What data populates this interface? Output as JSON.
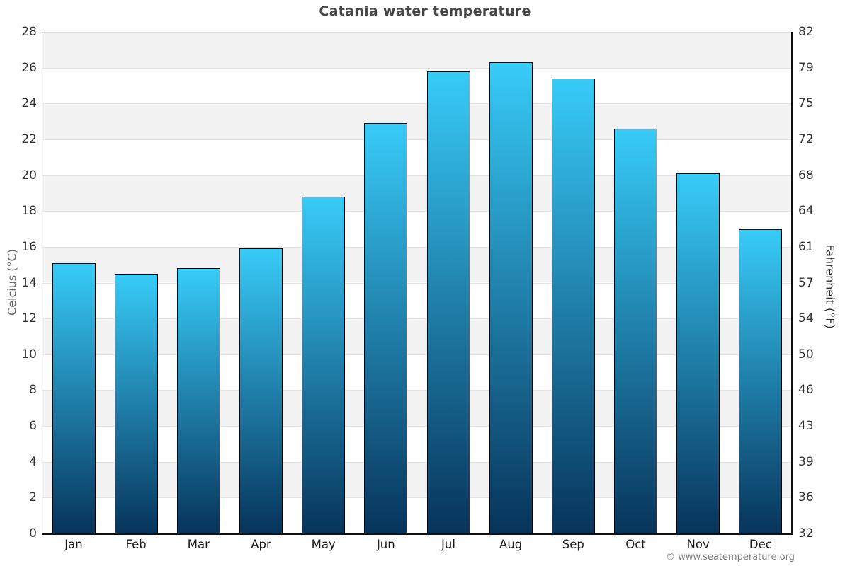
{
  "title": "Catania water temperature",
  "copyright": "© www.seatemperature.org",
  "chart_data": {
    "type": "bar",
    "title": "Catania water temperature",
    "categories": [
      "Jan",
      "Feb",
      "Mar",
      "Apr",
      "May",
      "Jun",
      "Jul",
      "Aug",
      "Sep",
      "Oct",
      "Nov",
      "Dec"
    ],
    "values": [
      15.1,
      14.5,
      14.8,
      15.9,
      18.8,
      22.9,
      25.8,
      26.3,
      25.4,
      22.6,
      20.1,
      17.0
    ],
    "ylabel_left": "Celcius (°C)",
    "ylabel_right": "Fahrenheit (°F)",
    "xlabel": "",
    "ylim_celsius": [
      0,
      28
    ],
    "celsius_ticks": [
      28,
      26,
      24,
      22,
      20,
      18,
      16,
      14,
      12,
      10,
      8,
      6,
      4,
      2,
      0
    ],
    "fahrenheit_ticks": [
      82,
      79,
      75,
      72,
      68,
      64,
      61,
      57,
      54,
      50,
      46,
      43,
      39,
      36,
      32
    ],
    "grid": "horizontal gridlines with alternating 2-degree background bands",
    "legend": "none",
    "colors": {
      "bar_gradient_top": "#38cbf8",
      "bar_gradient_bottom": "#07345b",
      "bar_border": "#000000",
      "band_gray": "#f2f2f2",
      "band_white": "#ffffff",
      "gridline": "#e2e2e2",
      "axis_left_line": "#999999",
      "axis_right_line": "#111111",
      "axis_bottom_line": "#111111",
      "title_color": "#474747",
      "tick_label_color": "#333333",
      "month_label_color": "#1a1a1a",
      "left_axis_title_color": "#666666",
      "right_axis_title_color": "#2b2b2b",
      "copyright_color": "#808080"
    }
  }
}
